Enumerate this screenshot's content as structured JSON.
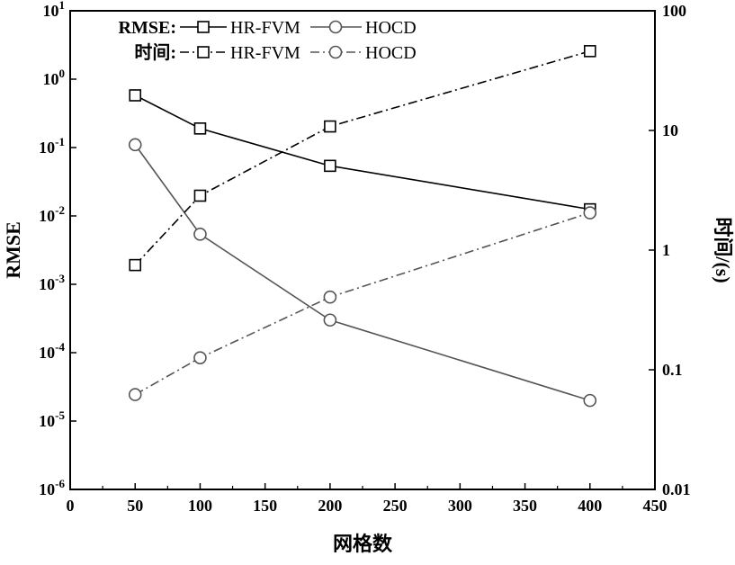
{
  "chart_data": {
    "type": "line",
    "xlabel": "网格数",
    "ylabel": "RMSE",
    "y2label": "时间/(s)",
    "xlim": [
      0,
      450
    ],
    "xticks": [
      "0",
      "50",
      "100",
      "150",
      "200",
      "250",
      "300",
      "350",
      "400",
      "450"
    ],
    "ylim": [
      1e-06,
      10
    ],
    "yscale": "log",
    "yticks_left": [
      {
        "base": "10",
        "exp": "1"
      },
      {
        "base": "10",
        "exp": "0"
      },
      {
        "base": "10",
        "exp": "-1"
      },
      {
        "base": "10",
        "exp": "-2"
      },
      {
        "base": "10",
        "exp": "-3"
      },
      {
        "base": "10",
        "exp": "-4"
      },
      {
        "base": "10",
        "exp": "-5"
      },
      {
        "base": "10",
        "exp": "-6"
      }
    ],
    "y2lim": [
      0.01,
      100
    ],
    "y2scale": "log",
    "yticks_right": [
      "100",
      "10",
      "1",
      "0.1",
      "0.01"
    ],
    "grid": false,
    "legend": {
      "placement": "top-left",
      "row1_label": "RMSE:",
      "row2_label": "时间:"
    },
    "series": [
      {
        "name": "HR-FVM",
        "group": "RMSE",
        "axis": "left",
        "marker": "square",
        "dash": "solid",
        "color": "#000000",
        "x": [
          50,
          100,
          200,
          400
        ],
        "y": [
          0.58,
          0.19,
          0.054,
          0.0125
        ]
      },
      {
        "name": "HOCD",
        "group": "RMSE",
        "axis": "left",
        "marker": "circle",
        "dash": "solid",
        "color": "#555555",
        "x": [
          50,
          100,
          200,
          400
        ],
        "y": [
          0.11,
          0.0054,
          0.0003,
          2e-05
        ]
      },
      {
        "name": "HR-FVM",
        "group": "时间",
        "axis": "right",
        "marker": "square",
        "dash": "dashdot",
        "color": "#000000",
        "x": [
          50,
          100,
          200,
          400
        ],
        "y": [
          0.75,
          2.85,
          10.8,
          46
        ]
      },
      {
        "name": "HOCD",
        "group": "时间",
        "axis": "right",
        "marker": "circle",
        "dash": "dashdot",
        "color": "#555555",
        "x": [
          50,
          100,
          200,
          400
        ],
        "y": [
          0.062,
          0.126,
          0.405,
          2.05
        ]
      }
    ]
  }
}
